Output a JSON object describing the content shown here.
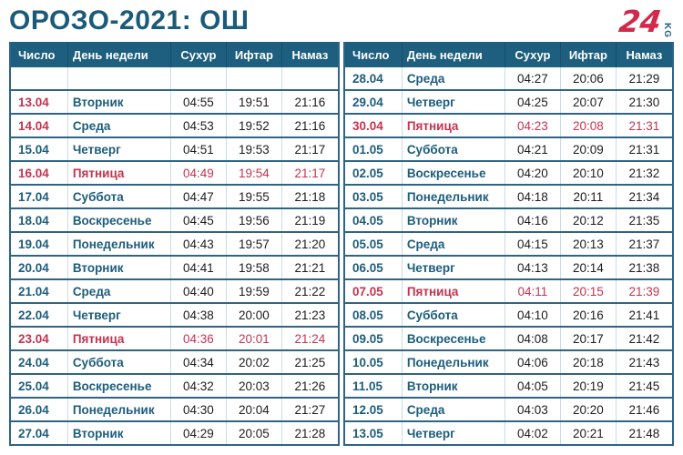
{
  "page": {
    "title": "ОРОЗО-2021: ОШ"
  },
  "logo": {
    "number": "24",
    "country": "KG"
  },
  "colors": {
    "header_teal": "#1e5e7e",
    "title_teal": "#1b5a78",
    "accent_red": "#c5334f",
    "date_day_blue": "#1d5d7c",
    "time_black": "#1c1c1c",
    "row_border": "#2f6485",
    "logo_red": "#d2294b"
  },
  "table_headers": [
    "Число",
    "День недели",
    "Сухур",
    "Ифтар",
    "Намаз"
  ],
  "left_table": {
    "rows": [
      {
        "date": "",
        "day": "",
        "suhur": "",
        "iftar": "",
        "namaz": "",
        "style": "empty"
      },
      {
        "date": "13.04",
        "day": "Вторник",
        "suhur": "04:55",
        "iftar": "19:51",
        "namaz": "21:16",
        "style": "date-red"
      },
      {
        "date": "14.04",
        "day": "Среда",
        "suhur": "04:53",
        "iftar": "19:52",
        "namaz": "21:16",
        "style": "date-red"
      },
      {
        "date": "15.04",
        "day": "Четверг",
        "suhur": "04:51",
        "iftar": "19:53",
        "namaz": "21:17",
        "style": "normal"
      },
      {
        "date": "16.04",
        "day": "Пятница",
        "suhur": "04:49",
        "iftar": "19:54",
        "namaz": "21:17",
        "style": "friday"
      },
      {
        "date": "17.04",
        "day": "Суббота",
        "suhur": "04:47",
        "iftar": "19:55",
        "namaz": "21:18",
        "style": "normal"
      },
      {
        "date": "18.04",
        "day": "Воскресенье",
        "suhur": "04:45",
        "iftar": "19:56",
        "namaz": "21:19",
        "style": "normal"
      },
      {
        "date": "19.04",
        "day": "Понедельник",
        "suhur": "04:43",
        "iftar": "19:57",
        "namaz": "21:20",
        "style": "normal"
      },
      {
        "date": "20.04",
        "day": "Вторник",
        "suhur": "04:41",
        "iftar": "19:58",
        "namaz": "21:21",
        "style": "normal"
      },
      {
        "date": "21.04",
        "day": "Среда",
        "suhur": "04:40",
        "iftar": "19:59",
        "namaz": "21:22",
        "style": "normal"
      },
      {
        "date": "22.04",
        "day": "Четверг",
        "suhur": "04:38",
        "iftar": "20:00",
        "namaz": "21:23",
        "style": "normal"
      },
      {
        "date": "23.04",
        "day": "Пятница",
        "suhur": "04:36",
        "iftar": "20:01",
        "namaz": "21:24",
        "style": "friday"
      },
      {
        "date": "24.04",
        "day": "Суббота",
        "suhur": "04:34",
        "iftar": "20:02",
        "namaz": "21:25",
        "style": "normal"
      },
      {
        "date": "25.04",
        "day": "Воскресенье",
        "suhur": "04:32",
        "iftar": "20:03",
        "namaz": "21:26",
        "style": "normal"
      },
      {
        "date": "26.04",
        "day": "Понедельник",
        "suhur": "04:30",
        "iftar": "20:04",
        "namaz": "21:27",
        "style": "normal"
      },
      {
        "date": "27.04",
        "day": "Вторник",
        "suhur": "04:29",
        "iftar": "20:05",
        "namaz": "21:28",
        "style": "normal"
      }
    ]
  },
  "right_table": {
    "rows": [
      {
        "date": "28.04",
        "day": "Среда",
        "suhur": "04:27",
        "iftar": "20:06",
        "namaz": "21:29",
        "style": "normal"
      },
      {
        "date": "29.04",
        "day": "Четверг",
        "suhur": "04:25",
        "iftar": "20:07",
        "namaz": "21:30",
        "style": "normal"
      },
      {
        "date": "30.04",
        "day": "Пятница",
        "suhur": "04:23",
        "iftar": "20:08",
        "namaz": "21:31",
        "style": "friday"
      },
      {
        "date": "01.05",
        "day": "Суббота",
        "suhur": "04:21",
        "iftar": "20:09",
        "namaz": "21:31",
        "style": "normal"
      },
      {
        "date": "02.05",
        "day": "Воскресенье",
        "suhur": "04:20",
        "iftar": "20:10",
        "namaz": "21:32",
        "style": "normal"
      },
      {
        "date": "03.05",
        "day": "Понедельник",
        "suhur": "04:18",
        "iftar": "20:11",
        "namaz": "21:34",
        "style": "normal"
      },
      {
        "date": "04.05",
        "day": "Вторник",
        "suhur": "04:16",
        "iftar": "20:12",
        "namaz": "21:35",
        "style": "normal"
      },
      {
        "date": "05.05",
        "day": "Среда",
        "suhur": "04:15",
        "iftar": "20:13",
        "namaz": "21:37",
        "style": "normal"
      },
      {
        "date": "06.05",
        "day": "Четверг",
        "suhur": "04:13",
        "iftar": "20:14",
        "namaz": "21:38",
        "style": "normal"
      },
      {
        "date": "07.05",
        "day": "Пятница",
        "suhur": "04:11",
        "iftar": "20:15",
        "namaz": "21:39",
        "style": "friday"
      },
      {
        "date": "08.05",
        "day": "Суббота",
        "suhur": "04:10",
        "iftar": "20:16",
        "namaz": "21:41",
        "style": "normal"
      },
      {
        "date": "09.05",
        "day": "Воскресенье",
        "suhur": "04:08",
        "iftar": "20:17",
        "namaz": "21:42",
        "style": "normal"
      },
      {
        "date": "10.05",
        "day": "Понедельник",
        "suhur": "04:06",
        "iftar": "20:18",
        "namaz": "21:43",
        "style": "normal"
      },
      {
        "date": "11.05",
        "day": "Вторник",
        "suhur": "04:05",
        "iftar": "20:19",
        "namaz": "21:45",
        "style": "normal"
      },
      {
        "date": "12.05",
        "day": "Среда",
        "suhur": "04:03",
        "iftar": "20:20",
        "namaz": "21:46",
        "style": "normal"
      },
      {
        "date": "13.05",
        "day": "Четверг",
        "suhur": "04:02",
        "iftar": "20:21",
        "namaz": "21:48",
        "style": "normal"
      }
    ]
  }
}
